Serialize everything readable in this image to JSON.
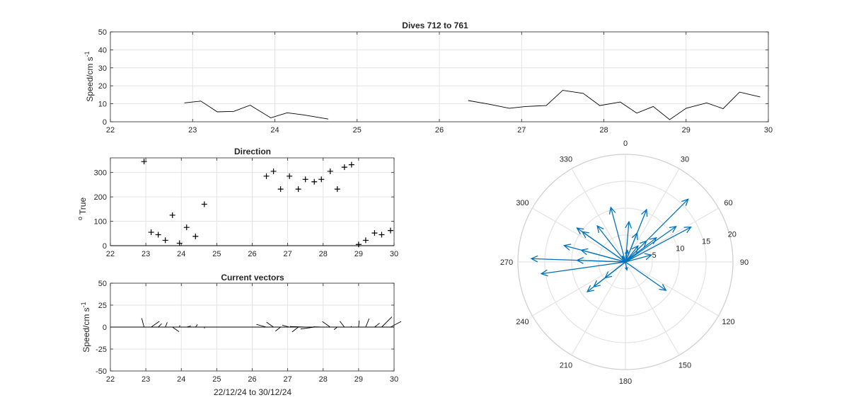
{
  "chart_data": [
    {
      "type": "line",
      "title": "Dives 712 to 761",
      "ylabel": "Speed/cm s",
      "ylabel_sup": "-1",
      "xlim": [
        22,
        30
      ],
      "ylim": [
        0,
        50
      ],
      "xticks": [
        22,
        23,
        24,
        25,
        26,
        27,
        28,
        29,
        30
      ],
      "yticks": [
        0,
        10,
        20,
        30,
        40,
        50
      ],
      "grid": true,
      "segments": [
        {
          "x": [
            22.9,
            23.1,
            23.3,
            23.5,
            23.7,
            23.95,
            24.15,
            24.35,
            24.65
          ],
          "y": [
            10.5,
            11.5,
            5.5,
            5.8,
            9.2,
            2.2,
            5.0,
            3.8,
            1.5
          ]
        },
        {
          "x": [
            26.35,
            26.6,
            26.85,
            27.05,
            27.3,
            27.5,
            27.75,
            27.95,
            28.2,
            28.4,
            28.6,
            28.8,
            29.0,
            29.25,
            29.45,
            29.65,
            29.9
          ],
          "y": [
            11.8,
            9.8,
            7.5,
            8.5,
            9.0,
            17.5,
            15.8,
            9.0,
            11.0,
            4.8,
            8.5,
            1.2,
            7.5,
            10.5,
            7.3,
            16.5,
            13.8
          ]
        }
      ]
    },
    {
      "type": "scatter",
      "title": "Direction",
      "ylabel": "True",
      "ylabel_prefix": "o",
      "xlim": [
        22,
        30
      ],
      "ylim": [
        0,
        360
      ],
      "xticks": [
        22,
        23,
        24,
        25,
        26,
        27,
        28,
        29,
        30
      ],
      "yticks": [
        0,
        100,
        200,
        300
      ],
      "grid": true,
      "x": [
        22.95,
        23.15,
        23.35,
        23.55,
        23.75,
        23.95,
        24.15,
        24.4,
        24.65,
        26.4,
        26.6,
        26.8,
        27.05,
        27.3,
        27.5,
        27.75,
        27.95,
        28.2,
        28.4,
        28.6,
        28.8,
        29.0,
        29.2,
        29.45,
        29.65,
        29.9
      ],
      "y": [
        345,
        55,
        45,
        22,
        125,
        10,
        75,
        38,
        170,
        285,
        305,
        232,
        285,
        232,
        272,
        262,
        272,
        305,
        232,
        322,
        332,
        5,
        22,
        52,
        45,
        62
      ]
    },
    {
      "type": "vector",
      "title": "Current vectors",
      "ylabel": "Speed/cm s",
      "ylabel_sup": "-1",
      "xlabel": "22/12/24 to 30/12/24",
      "xlim": [
        22,
        30
      ],
      "ylim": [
        -50,
        50
      ],
      "xticks": [
        22,
        23,
        24,
        25,
        26,
        27,
        28,
        29,
        30
      ],
      "yticks": [
        -50,
        -25,
        0,
        25,
        50
      ],
      "grid": true,
      "vectors": [
        {
          "x": 22.95,
          "dir": 345,
          "speed": 10.5
        },
        {
          "x": 23.15,
          "dir": 55,
          "speed": 11.5
        },
        {
          "x": 23.35,
          "dir": 45,
          "speed": 5.5
        },
        {
          "x": 23.55,
          "dir": 22,
          "speed": 5.8
        },
        {
          "x": 23.75,
          "dir": 125,
          "speed": 9.2
        },
        {
          "x": 23.95,
          "dir": 10,
          "speed": 2.2
        },
        {
          "x": 24.15,
          "dir": 75,
          "speed": 5.0
        },
        {
          "x": 24.4,
          "dir": 38,
          "speed": 3.8
        },
        {
          "x": 24.65,
          "dir": 170,
          "speed": 1.5
        },
        {
          "x": 26.4,
          "dir": 285,
          "speed": 11.8
        },
        {
          "x": 26.6,
          "dir": 305,
          "speed": 9.8
        },
        {
          "x": 26.8,
          "dir": 232,
          "speed": 7.5
        },
        {
          "x": 27.05,
          "dir": 285,
          "speed": 8.5
        },
        {
          "x": 27.3,
          "dir": 232,
          "speed": 9.0
        },
        {
          "x": 27.5,
          "dir": 272,
          "speed": 17.5
        },
        {
          "x": 27.75,
          "dir": 262,
          "speed": 15.8
        },
        {
          "x": 27.95,
          "dir": 272,
          "speed": 9.0
        },
        {
          "x": 28.2,
          "dir": 305,
          "speed": 11.0
        },
        {
          "x": 28.4,
          "dir": 232,
          "speed": 4.8
        },
        {
          "x": 28.6,
          "dir": 322,
          "speed": 8.5
        },
        {
          "x": 28.8,
          "dir": 332,
          "speed": 1.2
        },
        {
          "x": 29.0,
          "dir": 5,
          "speed": 7.5
        },
        {
          "x": 29.2,
          "dir": 22,
          "speed": 10.5
        },
        {
          "x": 29.45,
          "dir": 52,
          "speed": 7.3
        },
        {
          "x": 29.65,
          "dir": 45,
          "speed": 16.5
        },
        {
          "x": 29.9,
          "dir": 62,
          "speed": 13.8
        }
      ]
    },
    {
      "type": "polar",
      "rlim": [
        0,
        20
      ],
      "rticks": [
        5,
        10,
        15,
        20
      ],
      "theta_labels": [
        0,
        30,
        60,
        90,
        120,
        150,
        180,
        210,
        240,
        270,
        300,
        330
      ],
      "color": "#0072BD",
      "arrows": [
        {
          "dir": 345,
          "speed": 10.5
        },
        {
          "dir": 55,
          "speed": 11.5
        },
        {
          "dir": 45,
          "speed": 5.5
        },
        {
          "dir": 22,
          "speed": 5.8
        },
        {
          "dir": 125,
          "speed": 9.2
        },
        {
          "dir": 10,
          "speed": 2.2
        },
        {
          "dir": 75,
          "speed": 5.0
        },
        {
          "dir": 38,
          "speed": 3.8
        },
        {
          "dir": 170,
          "speed": 1.5
        },
        {
          "dir": 285,
          "speed": 11.8
        },
        {
          "dir": 305,
          "speed": 9.8
        },
        {
          "dir": 232,
          "speed": 7.5
        },
        {
          "dir": 285,
          "speed": 8.5
        },
        {
          "dir": 232,
          "speed": 9.0
        },
        {
          "dir": 272,
          "speed": 17.5
        },
        {
          "dir": 262,
          "speed": 15.8
        },
        {
          "dir": 272,
          "speed": 9.0
        },
        {
          "dir": 305,
          "speed": 11.0
        },
        {
          "dir": 232,
          "speed": 4.8
        },
        {
          "dir": 322,
          "speed": 8.5
        },
        {
          "dir": 332,
          "speed": 1.2
        },
        {
          "dir": 5,
          "speed": 7.5
        },
        {
          "dir": 22,
          "speed": 10.5
        },
        {
          "dir": 52,
          "speed": 7.3
        },
        {
          "dir": 45,
          "speed": 16.5
        },
        {
          "dir": 62,
          "speed": 13.8
        }
      ]
    }
  ]
}
